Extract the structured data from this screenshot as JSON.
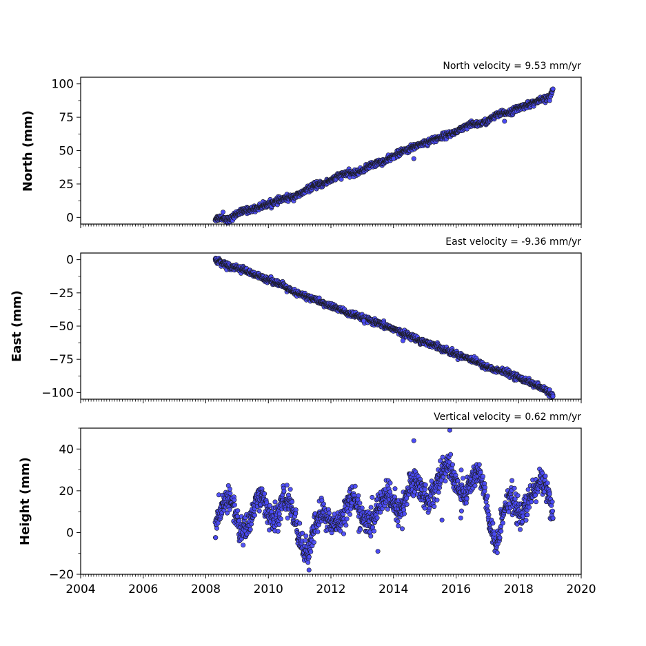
{
  "colors": {
    "marker_fill": "#4a4af5",
    "marker_edge": "#1a1a1a",
    "axes": "#000000",
    "background": "#ffffff"
  },
  "chart_data": [
    {
      "type": "scatter",
      "title": "North velocity = 9.53 mm/yr",
      "xlabel": "",
      "ylabel": "North (mm)",
      "xlim": [
        2004,
        2020
      ],
      "ylim": [
        -5,
        105
      ],
      "xticks": [
        2004,
        2006,
        2008,
        2010,
        2012,
        2014,
        2016,
        2018,
        2020
      ],
      "yticks": [
        0,
        25,
        50,
        75,
        100
      ],
      "ytick_labels": [
        "0",
        "25",
        "50",
        "75",
        "100"
      ],
      "x_tick_labels_visible": false,
      "grid": false,
      "trend": {
        "slope_per_year": 9.53,
        "x_start": 2008.3,
        "x_end": 2019.1,
        "y_start": -1,
        "y_end": 96
      },
      "series": [
        {
          "x": [
            2008.3,
            2008.5,
            2008.75,
            2009.0,
            2009.25,
            2009.5,
            2009.75,
            2010.0,
            2010.25,
            2010.5,
            2010.75,
            2011.0,
            2011.25,
            2011.5,
            2011.75,
            2012.0,
            2012.25,
            2012.5,
            2012.75,
            2013.0,
            2013.25,
            2013.5,
            2013.75,
            2014.0,
            2014.25,
            2014.5,
            2014.75,
            2015.0,
            2015.25,
            2015.5,
            2015.75,
            2016.0,
            2016.25,
            2016.5,
            2016.75,
            2017.0,
            2017.25,
            2017.5,
            2017.75,
            2018.0,
            2018.25,
            2018.5,
            2018.75,
            2019.0,
            2019.1
          ],
          "y": [
            -1,
            0,
            -2,
            3,
            5,
            6,
            8,
            10,
            12,
            14,
            15,
            17,
            21,
            24,
            25,
            28,
            31,
            33,
            33,
            35,
            39,
            41,
            42,
            46,
            49,
            51,
            54,
            56,
            58,
            60,
            62,
            64,
            67,
            70,
            70,
            72,
            76,
            78,
            79,
            82,
            84,
            86,
            88,
            90,
            96
          ]
        }
      ],
      "outliers": [
        [
          2014.0,
          44
        ],
        [
          2014.65,
          44
        ],
        [
          2017.55,
          72
        ],
        [
          2008.55,
          4
        ]
      ]
    },
    {
      "type": "scatter",
      "title": "East velocity = -9.36 mm/yr",
      "xlabel": "",
      "ylabel": "East (mm)",
      "xlim": [
        2004,
        2020
      ],
      "ylim": [
        -105,
        5
      ],
      "xticks": [
        2004,
        2006,
        2008,
        2010,
        2012,
        2014,
        2016,
        2018,
        2020
      ],
      "yticks": [
        -100,
        -75,
        -50,
        -25,
        0
      ],
      "ytick_labels": [
        "−100",
        "−75",
        "−50",
        "−25",
        "0"
      ],
      "x_tick_labels_visible": false,
      "grid": false,
      "trend": {
        "slope_per_year": -9.36,
        "x_start": 2008.3,
        "x_end": 2019.1,
        "y_start": 0,
        "y_end": -102
      },
      "series": [
        {
          "x": [
            2008.3,
            2008.5,
            2008.75,
            2009.0,
            2009.25,
            2009.5,
            2009.75,
            2010.0,
            2010.25,
            2010.5,
            2010.75,
            2011.0,
            2011.25,
            2011.5,
            2011.75,
            2012.0,
            2012.25,
            2012.5,
            2012.75,
            2013.0,
            2013.25,
            2013.5,
            2013.75,
            2014.0,
            2014.25,
            2014.5,
            2014.75,
            2015.0,
            2015.25,
            2015.5,
            2015.75,
            2016.0,
            2016.25,
            2016.5,
            2016.75,
            2017.0,
            2017.25,
            2017.5,
            2017.75,
            2018.0,
            2018.25,
            2018.5,
            2018.75,
            2019.0,
            2019.1
          ],
          "y": [
            0,
            -2,
            -5,
            -6,
            -8,
            -11,
            -13,
            -15,
            -17,
            -20,
            -24,
            -26,
            -28,
            -30,
            -33,
            -35,
            -37,
            -40,
            -42,
            -44,
            -46,
            -48,
            -50,
            -52,
            -55,
            -57,
            -60,
            -62,
            -64,
            -66,
            -69,
            -71,
            -73,
            -75,
            -78,
            -81,
            -83,
            -84,
            -86,
            -89,
            -91,
            -94,
            -97,
            -100,
            -103
          ]
        }
      ],
      "outliers": [
        [
          2014.3,
          -61
        ],
        [
          2013.05,
          -46
        ]
      ]
    },
    {
      "type": "scatter",
      "title": "Vertical velocity = 0.62 mm/yr",
      "xlabel": "",
      "ylabel": "Height (mm)",
      "xlim": [
        2004,
        2020
      ],
      "ylim": [
        -20,
        50
      ],
      "xticks": [
        2004,
        2006,
        2008,
        2010,
        2012,
        2014,
        2016,
        2018,
        2020
      ],
      "xtick_labels": [
        "2004",
        "2006",
        "2008",
        "2010",
        "2012",
        "2014",
        "2016",
        "2018",
        "2020"
      ],
      "yticks": [
        -20,
        0,
        20,
        40
      ],
      "ytick_labels": [
        "−20",
        "0",
        "20",
        "40"
      ],
      "x_tick_labels_visible": true,
      "grid": false,
      "trend": {
        "slope_per_year": 0.62,
        "annual_amplitude": 9,
        "annual_peak_phase": 0.7,
        "x_start": 2008.3,
        "x_end": 2019.1
      },
      "series": [
        {
          "x": [
            2008.3,
            2008.5,
            2008.7,
            2008.9,
            2009.1,
            2009.3,
            2009.5,
            2009.7,
            2009.9,
            2010.1,
            2010.3,
            2010.5,
            2010.7,
            2010.9,
            2011.1,
            2011.3,
            2011.5,
            2011.7,
            2011.9,
            2012.1,
            2012.3,
            2012.5,
            2012.7,
            2012.9,
            2013.1,
            2013.3,
            2013.5,
            2013.7,
            2013.9,
            2014.1,
            2014.3,
            2014.5,
            2014.7,
            2014.9,
            2015.1,
            2015.3,
            2015.5,
            2015.7,
            2015.9,
            2016.1,
            2016.3,
            2016.5,
            2016.7,
            2016.9,
            2017.1,
            2017.3,
            2017.5,
            2017.7,
            2017.9,
            2018.1,
            2018.3,
            2018.5,
            2018.7,
            2018.9,
            2019.1
          ],
          "y": [
            2,
            10,
            18,
            12,
            0,
            2,
            10,
            18,
            14,
            5,
            8,
            16,
            14,
            3,
            -8,
            -10,
            4,
            10,
            6,
            3,
            6,
            12,
            18,
            10,
            5,
            4,
            12,
            18,
            16,
            10,
            12,
            22,
            25,
            20,
            15,
            20,
            28,
            32,
            28,
            20,
            18,
            25,
            30,
            20,
            2,
            -8,
            10,
            18,
            12,
            8,
            14,
            20,
            25,
            22,
            8
          ]
        }
      ],
      "outliers": [
        [
          2014.65,
          44
        ],
        [
          2015.8,
          49
        ],
        [
          2011.3,
          -18
        ],
        [
          2013.5,
          -9
        ],
        [
          2014.05,
          21
        ],
        [
          2015.55,
          6
        ],
        [
          2016.15,
          7
        ]
      ]
    }
  ]
}
